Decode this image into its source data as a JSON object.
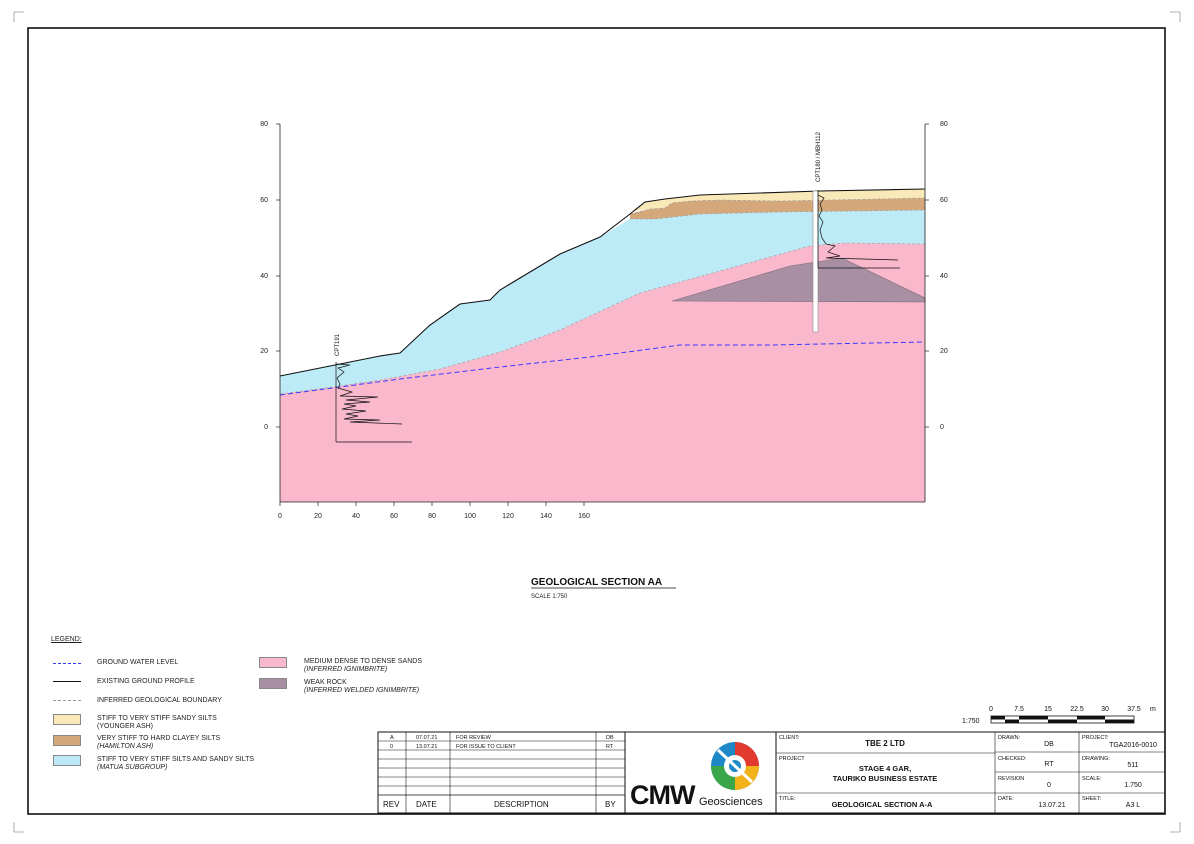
{
  "section": {
    "title": "GEOLOGICAL SECTION AA",
    "scale_note": "SCALE 1:750",
    "x_ticks": [
      "0",
      "20",
      "40",
      "60",
      "80",
      "100",
      "120",
      "140",
      "160"
    ],
    "y_ticks": [
      "80",
      "60",
      "40",
      "20",
      "0"
    ],
    "cpt_labels": [
      "CPT191",
      "CPT180 / MBH112"
    ]
  },
  "scale_bar": {
    "ratio": "1:750",
    "ticks": [
      "0",
      "7.5",
      "15",
      "22.5",
      "30",
      "37.5"
    ],
    "unit": "m"
  },
  "legend": {
    "heading": "LEGEND:",
    "items": [
      {
        "label": "GROUND WATER LEVEL",
        "sub": ""
      },
      {
        "label": "EXISTING GROUND PROFILE",
        "sub": ""
      },
      {
        "label": "INFERRED GEOLOGICAL BOUNDARY",
        "sub": ""
      },
      {
        "label": "STIFF TO VERY STIFF SANDY SILTS",
        "sub": "(YOUNGER ASH)"
      },
      {
        "label": "VERY STIFF TO HARD CLAYEY SILTS",
        "sub": "(HAMILTON ASH)"
      },
      {
        "label": "STIFF TO VERY STIFF SILTS AND SANDY SILTS",
        "sub": "(MATUA SUBGROUP)"
      },
      {
        "label": "MEDIUM DENSE TO DENSE SANDS",
        "sub": "(INFERRED IGNIMBRITE)"
      },
      {
        "label": "WEAK ROCK",
        "sub": "(INFERRED WELDED IGNIMBRITE)"
      }
    ]
  },
  "colors": {
    "younger_ash": "#f9e8b8",
    "hamilton_ash": "#d4a87a",
    "matua": "#bdeaf7",
    "ignimbrite": "#f9b8cc",
    "weak_rock": "#a88fa4",
    "water": "#3a3aff"
  },
  "revisions": {
    "headers": {
      "rev": "REV",
      "date": "DATE",
      "description": "DESCRIPTION",
      "by": "BY"
    },
    "rows": [
      {
        "rev": "A",
        "date": "07.07.21",
        "description": "FOR REVIEW",
        "by": "DB"
      },
      {
        "rev": "0",
        "date": "13.07.21",
        "description": "FOR ISSUE TO CLIENT",
        "by": "RT"
      }
    ]
  },
  "logo": {
    "main": "CMW",
    "sub": "Geosciences"
  },
  "title_block": {
    "client_label": "CLIENT:",
    "client": "TBE 2 LTD",
    "project_label": "PROJECT",
    "project_line1": "STAGE 4 GAR,",
    "project_line2": "TAURIKO BUSINESS ESTATE",
    "title_label": "TITLE:",
    "title": "GEOLOGICAL SECTION A-A",
    "drawn_label": "DRAWN:",
    "drawn": "DB",
    "checked_label": "CHECKED:",
    "checked": "RT",
    "revision_label": "REVISION",
    "revision": "0",
    "date_label": "DATE:",
    "date": "13.07.21",
    "project_no_label": "PROJECT:",
    "project_no": "TGA2016-0010",
    "drawing_label": "DRAWING:",
    "drawing": "511",
    "scale_label": "SCALE:",
    "scale": "1.750",
    "sheet_label": "SHEET:",
    "sheet": "A3 L"
  }
}
